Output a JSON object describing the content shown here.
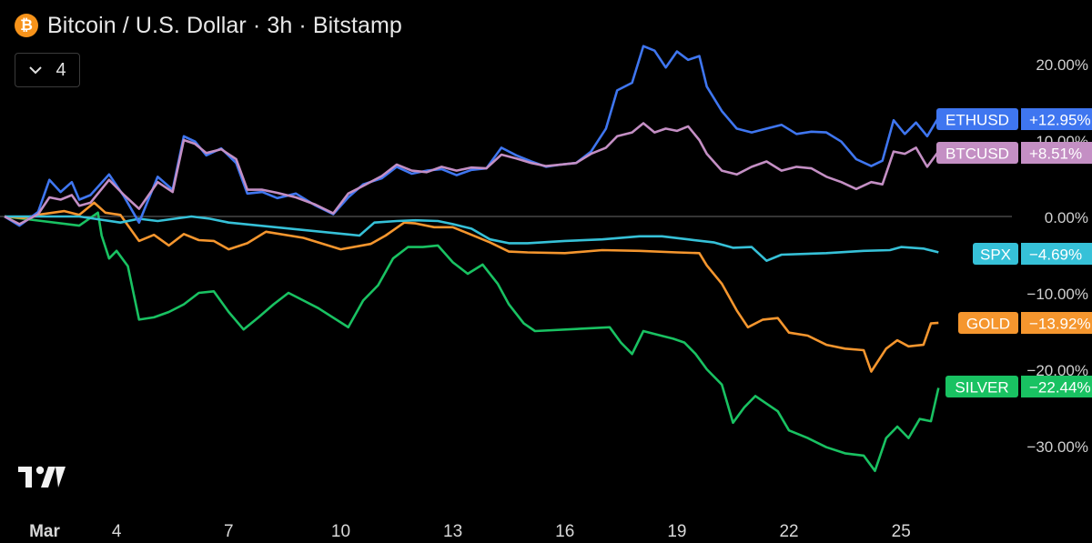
{
  "header": {
    "title": "Bitcoin / U.S. Dollar · 3h · Bitstamp",
    "logo_glyph": "₿",
    "logo_icon": "bitcoin-icon"
  },
  "indicators_toggle": {
    "icon": "chevron-down-icon",
    "count": "4"
  },
  "tradingview_logo_icon": "tradingview-logo-icon",
  "chart_data": {
    "type": "line",
    "x_unit": "days since Mar 1",
    "y_unit": "percent change",
    "ylim": [
      -35,
      24
    ],
    "xlim": [
      0,
      29.5
    ],
    "grid": false,
    "zero_line": true,
    "x_ticks": [
      {
        "x": 0,
        "label": "Mar"
      },
      {
        "x": 3,
        "label": "4"
      },
      {
        "x": 6,
        "label": "7"
      },
      {
        "x": 9,
        "label": "10"
      },
      {
        "x": 12,
        "label": "13"
      },
      {
        "x": 15,
        "label": "16"
      },
      {
        "x": 18,
        "label": "19"
      },
      {
        "x": 21,
        "label": "22"
      },
      {
        "x": 24,
        "label": "25"
      }
    ],
    "y_ticks": [
      {
        "y": 20,
        "label": "20.00%"
      },
      {
        "y": 10,
        "label": "10.00%"
      },
      {
        "y": 0,
        "label": "0.00%"
      },
      {
        "y": -10,
        "label": "−10.00%"
      },
      {
        "y": -20,
        "label": "−20.00%"
      },
      {
        "y": -30,
        "label": "−30.00%"
      }
    ],
    "series": [
      {
        "name": "ETHUSD",
        "color": "#3f76f0",
        "last_value_label": "+12.95%",
        "points": [
          [
            0,
            0
          ],
          [
            0.4,
            -1.2
          ],
          [
            0.9,
            0.6
          ],
          [
            1.2,
            4.8
          ],
          [
            1.5,
            3.2
          ],
          [
            1.8,
            4.5
          ],
          [
            2.0,
            2.2
          ],
          [
            2.3,
            2.8
          ],
          [
            2.8,
            5.5
          ],
          [
            3.2,
            2.6
          ],
          [
            3.6,
            -0.8
          ],
          [
            4.1,
            5.2
          ],
          [
            4.5,
            3.5
          ],
          [
            4.8,
            10.5
          ],
          [
            5.1,
            9.8
          ],
          [
            5.4,
            8.0
          ],
          [
            5.8,
            8.9
          ],
          [
            6.2,
            7.0
          ],
          [
            6.5,
            3.0
          ],
          [
            6.9,
            3.2
          ],
          [
            7.3,
            2.4
          ],
          [
            7.8,
            3.0
          ],
          [
            8.3,
            1.5
          ],
          [
            8.8,
            0.3
          ],
          [
            9.2,
            2.5
          ],
          [
            9.6,
            4.2
          ],
          [
            10.1,
            5.0
          ],
          [
            10.5,
            6.5
          ],
          [
            10.9,
            5.6
          ],
          [
            11.3,
            6.0
          ],
          [
            11.7,
            6.2
          ],
          [
            12.1,
            5.4
          ],
          [
            12.5,
            6.1
          ],
          [
            12.9,
            6.3
          ],
          [
            13.3,
            9.0
          ],
          [
            13.7,
            8.0
          ],
          [
            14.1,
            7.2
          ],
          [
            14.5,
            6.5
          ],
          [
            14.9,
            6.8
          ],
          [
            15.3,
            7.0
          ],
          [
            15.7,
            8.5
          ],
          [
            16.1,
            11.5
          ],
          [
            16.4,
            16.5
          ],
          [
            16.8,
            17.5
          ],
          [
            17.1,
            22.3
          ],
          [
            17.4,
            21.7
          ],
          [
            17.7,
            19.5
          ],
          [
            18.0,
            21.6
          ],
          [
            18.3,
            20.5
          ],
          [
            18.6,
            21.0
          ],
          [
            18.8,
            17.0
          ],
          [
            19.2,
            13.8
          ],
          [
            19.6,
            11.5
          ],
          [
            20.0,
            11.0
          ],
          [
            20.4,
            11.5
          ],
          [
            20.8,
            12.0
          ],
          [
            21.2,
            10.8
          ],
          [
            21.6,
            11.1
          ],
          [
            22.0,
            11.0
          ],
          [
            22.4,
            9.8
          ],
          [
            22.8,
            7.5
          ],
          [
            23.2,
            6.6
          ],
          [
            23.5,
            7.3
          ],
          [
            23.8,
            12.6
          ],
          [
            24.1,
            10.8
          ],
          [
            24.4,
            12.3
          ],
          [
            24.7,
            10.5
          ],
          [
            25.0,
            12.95
          ]
        ]
      },
      {
        "name": "BTCUSD",
        "color": "#c48fc4",
        "last_value_label": "+8.51%",
        "points": [
          [
            0,
            0
          ],
          [
            0.4,
            -1.0
          ],
          [
            0.9,
            0.3
          ],
          [
            1.2,
            2.5
          ],
          [
            1.5,
            2.2
          ],
          [
            1.8,
            2.8
          ],
          [
            2.0,
            1.4
          ],
          [
            2.3,
            1.8
          ],
          [
            2.8,
            4.8
          ],
          [
            3.2,
            2.8
          ],
          [
            3.6,
            1.0
          ],
          [
            4.1,
            4.5
          ],
          [
            4.5,
            3.2
          ],
          [
            4.8,
            10.0
          ],
          [
            5.1,
            9.5
          ],
          [
            5.4,
            8.3
          ],
          [
            5.8,
            8.8
          ],
          [
            6.2,
            7.5
          ],
          [
            6.5,
            3.5
          ],
          [
            6.9,
            3.5
          ],
          [
            7.3,
            3.1
          ],
          [
            7.8,
            2.5
          ],
          [
            8.3,
            1.6
          ],
          [
            8.8,
            0.4
          ],
          [
            9.2,
            3.0
          ],
          [
            9.6,
            4.0
          ],
          [
            10.1,
            5.3
          ],
          [
            10.5,
            6.8
          ],
          [
            10.9,
            6.0
          ],
          [
            11.3,
            5.8
          ],
          [
            11.7,
            6.5
          ],
          [
            12.1,
            6.0
          ],
          [
            12.5,
            6.4
          ],
          [
            12.9,
            6.3
          ],
          [
            13.3,
            8.1
          ],
          [
            13.7,
            7.6
          ],
          [
            14.1,
            7.0
          ],
          [
            14.5,
            6.6
          ],
          [
            14.9,
            6.8
          ],
          [
            15.3,
            7.0
          ],
          [
            15.7,
            8.2
          ],
          [
            16.1,
            9.0
          ],
          [
            16.4,
            10.5
          ],
          [
            16.8,
            11.0
          ],
          [
            17.1,
            12.2
          ],
          [
            17.4,
            11.0
          ],
          [
            17.7,
            11.5
          ],
          [
            18.0,
            11.2
          ],
          [
            18.3,
            11.8
          ],
          [
            18.6,
            10.0
          ],
          [
            18.8,
            8.2
          ],
          [
            19.2,
            6.0
          ],
          [
            19.6,
            5.5
          ],
          [
            20.0,
            6.5
          ],
          [
            20.4,
            7.2
          ],
          [
            20.8,
            6.0
          ],
          [
            21.2,
            6.5
          ],
          [
            21.6,
            6.3
          ],
          [
            22.0,
            5.2
          ],
          [
            22.4,
            4.5
          ],
          [
            22.8,
            3.6
          ],
          [
            23.2,
            4.5
          ],
          [
            23.5,
            4.2
          ],
          [
            23.8,
            8.5
          ],
          [
            24.1,
            8.2
          ],
          [
            24.4,
            9.0
          ],
          [
            24.7,
            6.5
          ],
          [
            25.0,
            8.51
          ]
        ]
      },
      {
        "name": "SPX",
        "color": "#36c1d8",
        "last_value_label": "−4.69%",
        "points": [
          [
            0,
            0
          ],
          [
            1.0,
            0
          ],
          [
            2.0,
            0
          ],
          [
            3.1,
            -0.8
          ],
          [
            3.6,
            -0.3
          ],
          [
            4.1,
            -0.6
          ],
          [
            5.0,
            0
          ],
          [
            5.5,
            -0.3
          ],
          [
            6.0,
            -0.8
          ],
          [
            9.5,
            -2.5
          ],
          [
            9.9,
            -0.8
          ],
          [
            10.5,
            -0.6
          ],
          [
            11.0,
            -0.5
          ],
          [
            11.6,
            -0.6
          ],
          [
            12.0,
            -1.0
          ],
          [
            12.5,
            -1.6
          ],
          [
            13.0,
            -3.0
          ],
          [
            13.5,
            -3.5
          ],
          [
            14.0,
            -3.5
          ],
          [
            15.0,
            -3.2
          ],
          [
            16.0,
            -3.0
          ],
          [
            17.0,
            -2.6
          ],
          [
            17.6,
            -2.6
          ],
          [
            18.3,
            -3.0
          ],
          [
            19.0,
            -3.4
          ],
          [
            19.5,
            -4.1
          ],
          [
            20.0,
            -4.0
          ],
          [
            20.4,
            -5.8
          ],
          [
            20.8,
            -5.0
          ],
          [
            22.0,
            -4.8
          ],
          [
            23.0,
            -4.5
          ],
          [
            23.7,
            -4.4
          ],
          [
            24.0,
            -4.0
          ],
          [
            24.6,
            -4.2
          ],
          [
            25.0,
            -4.69
          ]
        ]
      },
      {
        "name": "GOLD",
        "color": "#f5962e",
        "last_value_label": "−13.92%",
        "points": [
          [
            0,
            0
          ],
          [
            0.5,
            -0.2
          ],
          [
            1.0,
            0.3
          ],
          [
            1.6,
            0.7
          ],
          [
            2.0,
            0.2
          ],
          [
            2.4,
            1.8
          ],
          [
            2.7,
            0.5
          ],
          [
            3.1,
            0.2
          ],
          [
            3.6,
            -3.2
          ],
          [
            4.0,
            -2.4
          ],
          [
            4.4,
            -3.8
          ],
          [
            4.8,
            -2.3
          ],
          [
            5.2,
            -3.1
          ],
          [
            5.6,
            -3.2
          ],
          [
            6.0,
            -4.3
          ],
          [
            6.5,
            -3.5
          ],
          [
            7.0,
            -2.0
          ],
          [
            8.0,
            -2.8
          ],
          [
            9.0,
            -4.3
          ],
          [
            9.8,
            -3.6
          ],
          [
            10.2,
            -2.5
          ],
          [
            10.7,
            -0.8
          ],
          [
            11.0,
            -0.9
          ],
          [
            11.5,
            -1.4
          ],
          [
            12.0,
            -1.4
          ],
          [
            12.6,
            -2.6
          ],
          [
            13.0,
            -3.4
          ],
          [
            13.5,
            -4.6
          ],
          [
            14.0,
            -4.7
          ],
          [
            15.0,
            -4.8
          ],
          [
            16.0,
            -4.4
          ],
          [
            17.0,
            -4.5
          ],
          [
            18.0,
            -4.7
          ],
          [
            18.6,
            -4.8
          ],
          [
            18.8,
            -6.4
          ],
          [
            19.2,
            -8.8
          ],
          [
            19.6,
            -12.3
          ],
          [
            19.9,
            -14.5
          ],
          [
            20.3,
            -13.5
          ],
          [
            20.7,
            -13.3
          ],
          [
            21.0,
            -15.2
          ],
          [
            21.5,
            -15.6
          ],
          [
            22.0,
            -16.8
          ],
          [
            22.5,
            -17.3
          ],
          [
            23.0,
            -17.5
          ],
          [
            23.2,
            -20.3
          ],
          [
            23.6,
            -17.3
          ],
          [
            23.9,
            -16.2
          ],
          [
            24.2,
            -17.0
          ],
          [
            24.6,
            -16.8
          ],
          [
            24.8,
            -14.0
          ],
          [
            25.0,
            -13.92
          ]
        ]
      },
      {
        "name": "SILVER",
        "color": "#19c262",
        "last_value_label": "−22.44%",
        "points": [
          [
            0,
            0
          ],
          [
            1.0,
            -0.6
          ],
          [
            2.0,
            -1.2
          ],
          [
            2.5,
            0.5
          ],
          [
            2.6,
            -2.5
          ],
          [
            2.8,
            -5.5
          ],
          [
            3.0,
            -4.5
          ],
          [
            3.3,
            -6.5
          ],
          [
            3.6,
            -13.5
          ],
          [
            4.0,
            -13.2
          ],
          [
            4.4,
            -12.5
          ],
          [
            4.8,
            -11.5
          ],
          [
            5.2,
            -10.0
          ],
          [
            5.6,
            -9.8
          ],
          [
            6.0,
            -12.5
          ],
          [
            6.4,
            -14.8
          ],
          [
            6.8,
            -13.2
          ],
          [
            7.2,
            -11.5
          ],
          [
            7.6,
            -10.0
          ],
          [
            8.0,
            -11.0
          ],
          [
            8.4,
            -12.0
          ],
          [
            9.2,
            -14.5
          ],
          [
            9.6,
            -11.0
          ],
          [
            10.0,
            -9.0
          ],
          [
            10.4,
            -5.5
          ],
          [
            10.8,
            -4.0
          ],
          [
            11.2,
            -4.0
          ],
          [
            11.6,
            -3.8
          ],
          [
            12.0,
            -6.0
          ],
          [
            12.4,
            -7.5
          ],
          [
            12.8,
            -6.3
          ],
          [
            13.2,
            -8.8
          ],
          [
            13.5,
            -11.5
          ],
          [
            13.9,
            -14.0
          ],
          [
            14.2,
            -15.0
          ],
          [
            16.2,
            -14.5
          ],
          [
            16.5,
            -16.5
          ],
          [
            16.8,
            -18.0
          ],
          [
            17.1,
            -15.0
          ],
          [
            17.5,
            -15.5
          ],
          [
            17.9,
            -16.0
          ],
          [
            18.2,
            -16.5
          ],
          [
            18.5,
            -18.0
          ],
          [
            18.8,
            -20.0
          ],
          [
            19.2,
            -22.0
          ],
          [
            19.5,
            -27.0
          ],
          [
            19.8,
            -25.0
          ],
          [
            20.1,
            -23.5
          ],
          [
            20.4,
            -24.5
          ],
          [
            20.7,
            -25.5
          ],
          [
            21.0,
            -28.0
          ],
          [
            21.5,
            -29.0
          ],
          [
            22.0,
            -30.2
          ],
          [
            22.5,
            -31.0
          ],
          [
            23.0,
            -31.3
          ],
          [
            23.3,
            -33.3
          ],
          [
            23.6,
            -29.0
          ],
          [
            23.9,
            -27.5
          ],
          [
            24.2,
            -29.0
          ],
          [
            24.5,
            -26.5
          ],
          [
            24.8,
            -26.8
          ],
          [
            25.0,
            -22.44
          ]
        ]
      }
    ]
  }
}
